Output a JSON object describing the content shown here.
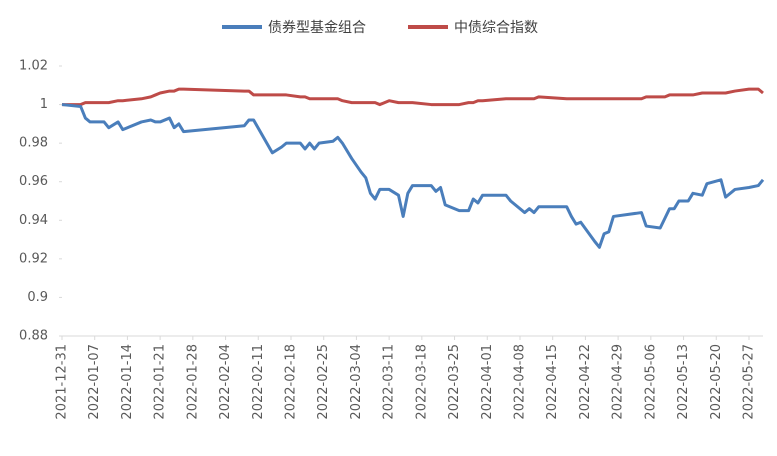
{
  "chart_data": {
    "type": "line",
    "x": [
      "2021-12-31",
      "2022-01-04",
      "2022-01-05",
      "2022-01-06",
      "2022-01-09",
      "2022-01-10",
      "2022-01-12",
      "2022-01-13",
      "2022-01-17",
      "2022-01-19",
      "2022-01-20",
      "2022-01-21",
      "2022-01-23",
      "2022-01-24",
      "2022-01-25",
      "2022-01-26",
      "2022-02-08",
      "2022-02-09",
      "2022-02-10",
      "2022-02-14",
      "2022-02-16",
      "2022-02-17",
      "2022-02-20",
      "2022-02-21",
      "2022-02-22",
      "2022-02-23",
      "2022-02-24",
      "2022-02-27",
      "2022-02-28",
      "2022-03-01",
      "2022-03-03",
      "2022-03-05",
      "2022-03-06",
      "2022-03-07",
      "2022-03-08",
      "2022-03-09",
      "2022-03-11",
      "2022-03-13",
      "2022-03-14",
      "2022-03-15",
      "2022-03-16",
      "2022-03-20",
      "2022-03-21",
      "2022-03-22",
      "2022-03-23",
      "2022-03-26",
      "2022-03-28",
      "2022-03-29",
      "2022-03-30",
      "2022-03-31",
      "2022-04-05",
      "2022-04-06",
      "2022-04-09",
      "2022-04-10",
      "2022-04-11",
      "2022-04-12",
      "2022-04-18",
      "2022-04-19",
      "2022-04-20",
      "2022-04-21",
      "2022-04-24",
      "2022-04-25",
      "2022-04-26",
      "2022-04-27",
      "2022-04-28",
      "2022-05-04",
      "2022-05-05",
      "2022-05-08",
      "2022-05-09",
      "2022-05-10",
      "2022-05-11",
      "2022-05-12",
      "2022-05-14",
      "2022-05-15",
      "2022-05-17",
      "2022-05-18",
      "2022-05-21",
      "2022-05-22",
      "2022-05-24",
      "2022-05-27",
      "2022-05-29",
      "2022-05-30"
    ],
    "series": [
      {
        "name": "债券型基金组合",
        "color": "#4a7ebb",
        "values": [
          1.0,
          0.999,
          0.993,
          0.991,
          0.991,
          0.988,
          0.991,
          0.987,
          0.991,
          0.992,
          0.991,
          0.991,
          0.993,
          0.988,
          0.99,
          0.986,
          0.989,
          0.992,
          0.992,
          0.975,
          0.978,
          0.98,
          0.98,
          0.977,
          0.98,
          0.977,
          0.98,
          0.981,
          0.983,
          0.98,
          0.972,
          0.965,
          0.962,
          0.954,
          0.951,
          0.956,
          0.956,
          0.953,
          0.942,
          0.954,
          0.958,
          0.958,
          0.955,
          0.957,
          0.948,
          0.945,
          0.945,
          0.951,
          0.949,
          0.953,
          0.953,
          0.95,
          0.944,
          0.946,
          0.944,
          0.947,
          0.947,
          0.942,
          0.938,
          0.939,
          0.929,
          0.926,
          0.933,
          0.934,
          0.942,
          0.944,
          0.937,
          0.936,
          0.941,
          0.946,
          0.946,
          0.95,
          0.95,
          0.954,
          0.953,
          0.959,
          0.961,
          0.952,
          0.956,
          0.957,
          0.958,
          0.961
        ]
      },
      {
        "name": "中债综合指数",
        "color": "#be4b48",
        "values": [
          1.0,
          1.0,
          1.001,
          1.001,
          1.001,
          1.001,
          1.002,
          1.002,
          1.003,
          1.004,
          1.005,
          1.006,
          1.007,
          1.007,
          1.008,
          1.008,
          1.007,
          1.007,
          1.005,
          1.005,
          1.005,
          1.005,
          1.004,
          1.004,
          1.003,
          1.003,
          1.003,
          1.003,
          1.003,
          1.002,
          1.001,
          1.001,
          1.001,
          1.001,
          1.001,
          1.0,
          1.002,
          1.001,
          1.001,
          1.001,
          1.001,
          1.0,
          1.0,
          1.0,
          1.0,
          1.0,
          1.001,
          1.001,
          1.002,
          1.002,
          1.003,
          1.003,
          1.003,
          1.003,
          1.003,
          1.004,
          1.003,
          1.003,
          1.003,
          1.003,
          1.003,
          1.003,
          1.003,
          1.003,
          1.003,
          1.003,
          1.004,
          1.004,
          1.004,
          1.005,
          1.005,
          1.005,
          1.005,
          1.005,
          1.006,
          1.006,
          1.006,
          1.006,
          1.007,
          1.008,
          1.008,
          1.006
        ]
      }
    ],
    "xlim": [
      "2021-12-31",
      "2022-05-30"
    ],
    "xticks": [
      "2021-12-31",
      "2022-01-07",
      "2022-01-14",
      "2022-01-21",
      "2022-01-28",
      "2022-02-04",
      "2022-02-11",
      "2022-02-18",
      "2022-02-25",
      "2022-03-04",
      "2022-03-11",
      "2022-03-18",
      "2022-03-25",
      "2022-04-01",
      "2022-04-08",
      "2022-04-15",
      "2022-04-22",
      "2022-04-29",
      "2022-05-06",
      "2022-05-13",
      "2022-05-20",
      "2022-05-27"
    ],
    "ylim": [
      0.88,
      1.02
    ],
    "yticks": [
      0.88,
      0.9,
      0.92,
      0.94,
      0.96,
      0.98,
      1,
      1.02
    ],
    "legend": "top"
  }
}
